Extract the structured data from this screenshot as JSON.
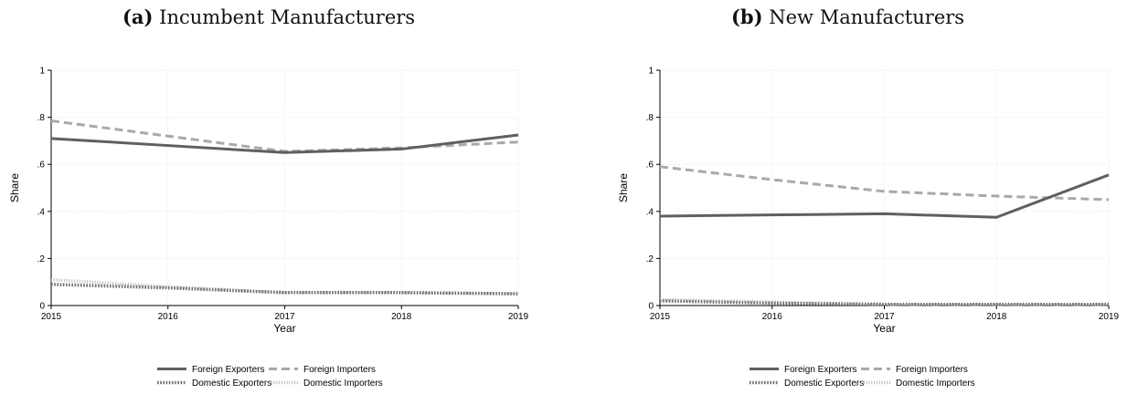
{
  "chart_data": [
    {
      "type": "line",
      "panel_label": "(a)",
      "title": "Incumbent Manufacturers",
      "xlabel": "Year",
      "ylabel": "Share",
      "x": [
        2015,
        2016,
        2017,
        2018,
        2019
      ],
      "xlim": [
        2015,
        2019
      ],
      "ylim": [
        0,
        1
      ],
      "yticks": [
        0,
        0.2,
        0.4,
        0.6,
        0.8,
        1
      ],
      "ytick_labels": [
        "0",
        ".2",
        ".4",
        ".6",
        ".8",
        "1"
      ],
      "xtick_labels": [
        "2015",
        "2016",
        "2017",
        "2018",
        "2019"
      ],
      "grid": true,
      "legend_position": "bottom",
      "series": [
        {
          "name": "Foreign Exporters",
          "style": "solid",
          "color": "#5f5f5f",
          "values": [
            0.71,
            0.68,
            0.65,
            0.665,
            0.725
          ]
        },
        {
          "name": "Foreign Importers",
          "style": "dashed",
          "color": "#a9a9a9",
          "values": [
            0.785,
            0.72,
            0.655,
            0.67,
            0.695
          ]
        },
        {
          "name": "Domestic Exporters",
          "style": "dotted",
          "color": "#6e6e6e",
          "values": [
            0.09,
            0.075,
            0.055,
            0.055,
            0.05
          ]
        },
        {
          "name": "Domestic Importers",
          "style": "dotted-light",
          "color": "#b8b8b8",
          "values": [
            0.11,
            0.08,
            0.055,
            0.055,
            0.05
          ]
        }
      ]
    },
    {
      "type": "line",
      "panel_label": "(b)",
      "title": "New Manufacturers",
      "xlabel": "Year",
      "ylabel": "Share",
      "x": [
        2015,
        2016,
        2017,
        2018,
        2019
      ],
      "xlim": [
        2015,
        2019
      ],
      "ylim": [
        0,
        1
      ],
      "yticks": [
        0,
        0.2,
        0.4,
        0.6,
        0.8,
        1
      ],
      "ytick_labels": [
        "0",
        ".2",
        ".4",
        ".6",
        ".8",
        "1"
      ],
      "xtick_labels": [
        "2015",
        "2016",
        "2017",
        "2018",
        "2019"
      ],
      "grid": true,
      "legend_position": "bottom",
      "series": [
        {
          "name": "Foreign Exporters",
          "style": "solid",
          "color": "#5f5f5f",
          "values": [
            0.38,
            0.385,
            0.39,
            0.375,
            0.555
          ]
        },
        {
          "name": "Foreign Importers",
          "style": "dashed",
          "color": "#a9a9a9",
          "values": [
            0.59,
            0.535,
            0.485,
            0.465,
            0.45
          ]
        },
        {
          "name": "Domestic Exporters",
          "style": "dotted",
          "color": "#6e6e6e",
          "values": [
            0.02,
            0.01,
            0.005,
            0.005,
            0.005
          ]
        },
        {
          "name": "Domestic Importers",
          "style": "dotted-light",
          "color": "#b8b8b8",
          "values": [
            0.025,
            0.015,
            0.005,
            0.005,
            0.005
          ]
        }
      ]
    }
  ]
}
